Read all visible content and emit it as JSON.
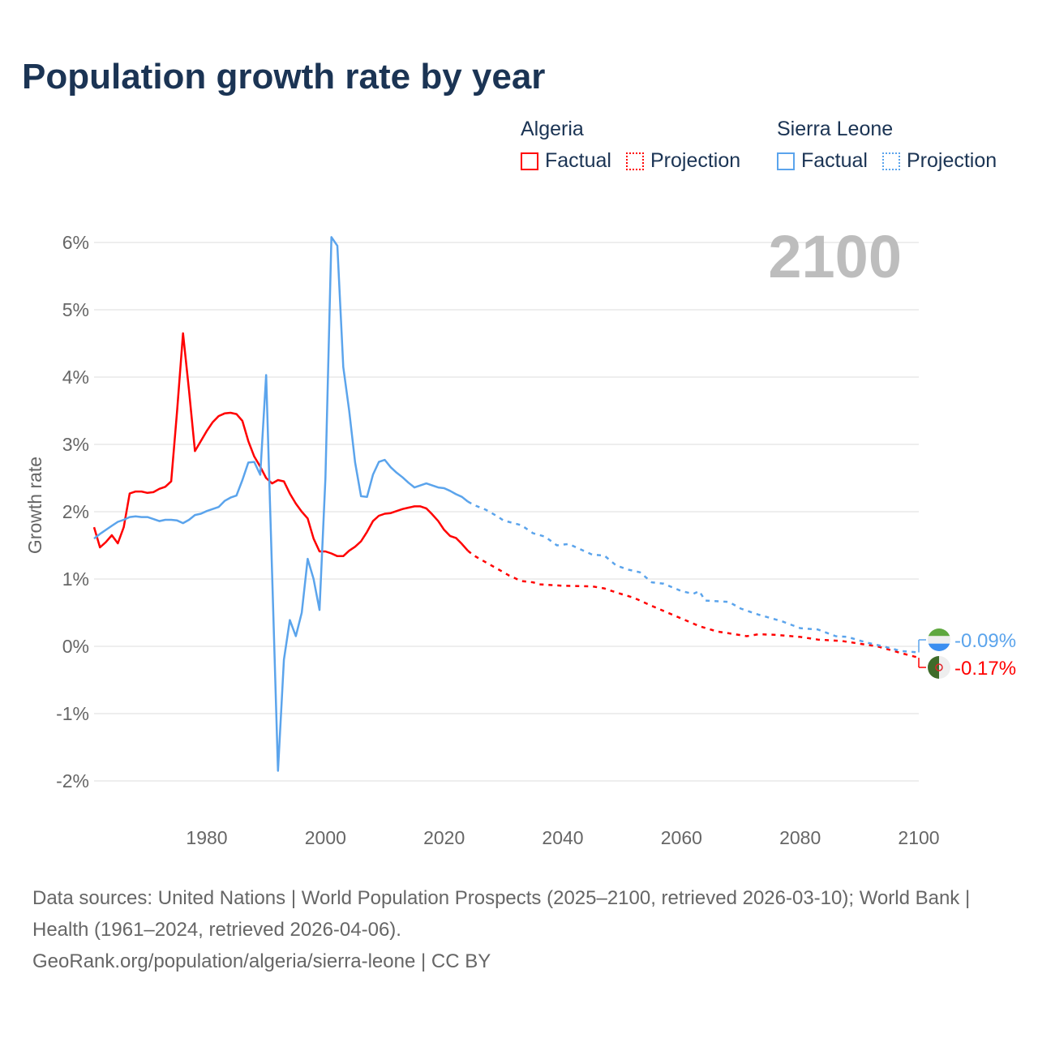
{
  "chart_data": {
    "type": "line",
    "title": "Population growth rate by year",
    "ylabel": "Growth rate",
    "xlabel": "",
    "xlim": [
      1961,
      2100
    ],
    "ylim": [
      -2.3,
      6.2
    ],
    "x_ticks": [
      1980,
      2000,
      2020,
      2040,
      2060,
      2080,
      2100
    ],
    "x_tick_labels": [
      "1980",
      "2000",
      "2020",
      "2040",
      "2060",
      "2080",
      "2100"
    ],
    "y_ticks": [
      -2,
      -1,
      0,
      1,
      2,
      3,
      4,
      5,
      6
    ],
    "y_tick_labels": [
      "-2%",
      "-1%",
      "0%",
      "1%",
      "2%",
      "3%",
      "4%",
      "5%",
      "6%"
    ],
    "grid": true,
    "year_label": "2100",
    "legend": [
      {
        "group": "Algeria",
        "items": [
          "Factual",
          "Projection"
        ],
        "color": "#ff0000"
      },
      {
        "group": "Sierra Leone",
        "items": [
          "Factual",
          "Projection"
        ],
        "color": "#5ba4ec"
      }
    ],
    "series": [
      {
        "name": "Algeria",
        "kind": "Factual",
        "color": "#ff0000",
        "x": [
          1961,
          1962,
          1963,
          1964,
          1965,
          1966,
          1967,
          1968,
          1969,
          1970,
          1971,
          1972,
          1973,
          1974,
          1975,
          1976,
          1977,
          1978,
          1979,
          1980,
          1981,
          1982,
          1983,
          1984,
          1985,
          1986,
          1987,
          1988,
          1989,
          1990,
          1991,
          1992,
          1993,
          1994,
          1995,
          1996,
          1997,
          1998,
          1999,
          2000,
          2001,
          2002,
          2003,
          2004,
          2005,
          2006,
          2007,
          2008,
          2009,
          2010,
          2011,
          2012,
          2013,
          2014,
          2015,
          2016,
          2017,
          2018,
          2019,
          2020,
          2021,
          2022,
          2023,
          2024
        ],
        "y": [
          1.77,
          1.47,
          1.55,
          1.65,
          1.53,
          1.77,
          2.27,
          2.3,
          2.3,
          2.28,
          2.29,
          2.34,
          2.37,
          2.45,
          3.5,
          4.65,
          3.8,
          2.9,
          3.05,
          3.2,
          3.33,
          3.42,
          3.46,
          3.47,
          3.45,
          3.35,
          3.05,
          2.82,
          2.67,
          2.5,
          2.42,
          2.47,
          2.45,
          2.27,
          2.12,
          2.0,
          1.9,
          1.6,
          1.41,
          1.41,
          1.38,
          1.34,
          1.34,
          1.42,
          1.48,
          1.56,
          1.7,
          1.86,
          1.94,
          1.97,
          1.98,
          2.01,
          2.04,
          2.06,
          2.08,
          2.08,
          2.05,
          1.96,
          1.86,
          1.73,
          1.64,
          1.61,
          1.52,
          1.42
        ]
      },
      {
        "name": "Algeria",
        "kind": "Projection",
        "color": "#ff0000",
        "x": [
          2024,
          2025,
          2027,
          2029,
          2031,
          2033,
          2035,
          2036,
          2040,
          2045,
          2047,
          2049,
          2052,
          2055,
          2059,
          2063,
          2066,
          2069,
          2071,
          2073,
          2076,
          2080,
          2083,
          2087,
          2090,
          2093,
          2095,
          2097,
          2100
        ],
        "y": [
          1.42,
          1.35,
          1.25,
          1.15,
          1.05,
          0.97,
          0.95,
          0.92,
          0.9,
          0.89,
          0.86,
          0.8,
          0.72,
          0.6,
          0.45,
          0.3,
          0.22,
          0.18,
          0.15,
          0.18,
          0.17,
          0.14,
          0.1,
          0.08,
          0.04,
          0.0,
          -0.05,
          -0.1,
          -0.17
        ]
      },
      {
        "name": "Sierra Leone",
        "kind": "Factual",
        "color": "#5ba4ec",
        "x": [
          1961,
          1962,
          1963,
          1964,
          1965,
          1966,
          1967,
          1968,
          1969,
          1970,
          1971,
          1972,
          1973,
          1974,
          1975,
          1976,
          1977,
          1978,
          1979,
          1980,
          1981,
          1982,
          1983,
          1984,
          1985,
          1986,
          1987,
          1988,
          1989,
          1990,
          1991,
          1992,
          1993,
          1994,
          1995,
          1996,
          1997,
          1998,
          1999,
          2000,
          2001,
          2002,
          2003,
          2004,
          2005,
          2006,
          2007,
          2008,
          2009,
          2010,
          2011,
          2012,
          2013,
          2014,
          2015,
          2016,
          2017,
          2018,
          2019,
          2020,
          2021,
          2022,
          2023,
          2024
        ],
        "y": [
          1.6,
          1.67,
          1.73,
          1.79,
          1.85,
          1.88,
          1.92,
          1.93,
          1.92,
          1.92,
          1.89,
          1.86,
          1.88,
          1.88,
          1.87,
          1.83,
          1.88,
          1.95,
          1.97,
          2.01,
          2.04,
          2.07,
          2.16,
          2.21,
          2.24,
          2.47,
          2.73,
          2.74,
          2.55,
          4.03,
          1.1,
          -1.85,
          -0.2,
          0.39,
          0.15,
          0.5,
          1.3,
          1.0,
          0.54,
          2.5,
          6.08,
          5.95,
          4.15,
          3.5,
          2.73,
          2.23,
          2.22,
          2.55,
          2.74,
          2.77,
          2.66,
          2.58,
          2.51,
          2.43,
          2.36,
          2.39,
          2.42,
          2.39,
          2.36,
          2.35,
          2.31,
          2.26,
          2.22,
          2.15
        ]
      },
      {
        "name": "Sierra Leone",
        "kind": "Projection",
        "color": "#5ba4ec",
        "x": [
          2024,
          2025,
          2027,
          2029,
          2030,
          2033,
          2035,
          2037,
          2039,
          2041,
          2043,
          2045,
          2047,
          2049,
          2051,
          2053,
          2055,
          2057,
          2060,
          2062,
          2063,
          2064,
          2068,
          2070,
          2073,
          2075,
          2077,
          2080,
          2083,
          2086,
          2088,
          2091,
          2094,
          2097,
          2100
        ],
        "y": [
          2.15,
          2.1,
          2.03,
          1.93,
          1.87,
          1.8,
          1.68,
          1.63,
          1.5,
          1.52,
          1.44,
          1.36,
          1.35,
          1.2,
          1.14,
          1.1,
          0.95,
          0.93,
          0.82,
          0.78,
          0.82,
          0.68,
          0.66,
          0.56,
          0.47,
          0.42,
          0.37,
          0.27,
          0.25,
          0.15,
          0.14,
          0.06,
          0.0,
          -0.07,
          -0.09
        ]
      }
    ],
    "end_labels": [
      {
        "name": "Sierra Leone",
        "text": "-0.09%",
        "value": -0.09,
        "color": "#5ba4ec"
      },
      {
        "name": "Algeria",
        "text": "-0.17%",
        "value": -0.17,
        "color": "#ff0000"
      }
    ]
  },
  "footer": {
    "sources": "Data sources: United Nations | World Population Prospects (2025–2100, retrieved 2026-03-10); World Bank | Health (1961–2024, retrieved 2026-04-06).",
    "credit": "GeoRank.org/population/algeria/sierra-leone | CC BY"
  }
}
